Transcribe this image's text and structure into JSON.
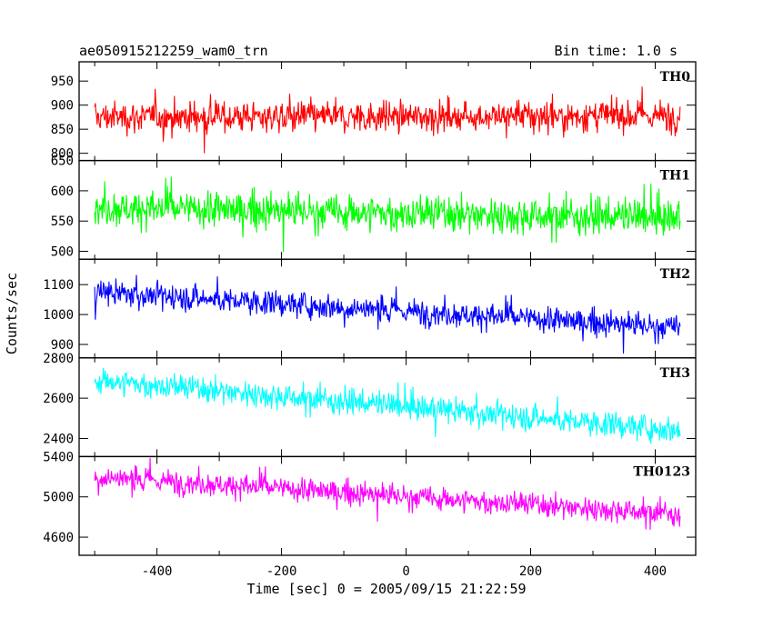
{
  "chart_data": {
    "type": "line",
    "title": "ae050915212259_wam0_trn",
    "subtitle": "Bin time: 1.0 s",
    "xlabel": "Time [sec] 0 = 2005/09/15 21:22:59",
    "ylabel": "Counts/sec",
    "xlim": [
      -525,
      465
    ],
    "x_ticks": [
      -400,
      -200,
      0,
      200,
      400
    ],
    "x_range": [
      -500,
      440
    ],
    "grid": false,
    "panels": [
      {
        "name": "TH0",
        "color": "#ff0000",
        "ylim": [
          785,
          990
        ],
        "y_ticks": [
          800,
          850,
          900,
          950
        ],
        "trend_start": 875,
        "trend_end": 878,
        "noise": 30,
        "min": 800,
        "max": 990
      },
      {
        "name": "TH1",
        "color": "#00ff00",
        "ylim": [
          487,
          650
        ],
        "y_ticks": [
          500,
          550,
          600,
          650
        ],
        "trend_start": 572,
        "trend_end": 555,
        "noise": 28,
        "min": 487,
        "max": 650
      },
      {
        "name": "TH2",
        "color": "#0000ff",
        "ylim": [
          855,
          1185
        ],
        "y_ticks": [
          900,
          1000,
          1100
        ],
        "trend_start": 1075,
        "trend_end": 955,
        "noise": 40,
        "min": 855,
        "max": 1185
      },
      {
        "name": "TH3",
        "color": "#00ffff",
        "ylim": [
          2310,
          2800
        ],
        "y_ticks": [
          2400,
          2600,
          2800
        ],
        "trend_start": 2690,
        "trend_end": 2440,
        "noise": 60,
        "min": 2310,
        "max": 2800
      },
      {
        "name": "TH0123",
        "color": "#ff00ff",
        "ylim": [
          4420,
          5400
        ],
        "y_ticks": [
          4600,
          5000,
          5400
        ],
        "trend_start": 5200,
        "trend_end": 4830,
        "noise": 110,
        "min": 4420,
        "max": 5400
      }
    ]
  }
}
